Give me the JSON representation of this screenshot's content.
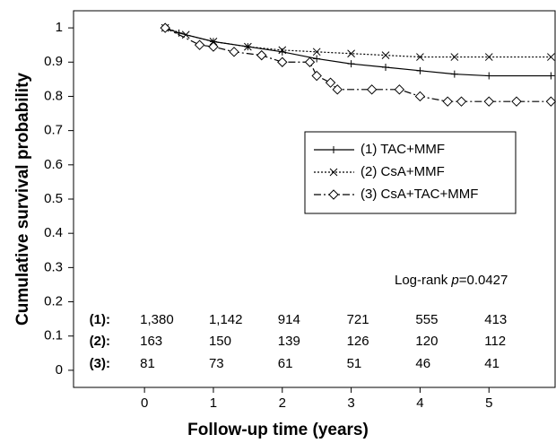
{
  "chart_data": {
    "type": "km",
    "xlabel": "Follow-up time (years)",
    "ylabel": "Cumulative survival probability",
    "xlim": [
      -1.03,
      5.96
    ],
    "ylim": [
      -0.05,
      1.05
    ],
    "xticks": [
      0,
      1,
      2,
      3,
      4,
      5
    ],
    "yticks": [
      0,
      0.1,
      0.2,
      0.3,
      0.4,
      0.5,
      0.6,
      0.7,
      0.8,
      0.9,
      1
    ],
    "series": [
      {
        "name": "(1) TAC+MMF",
        "color": "#000000",
        "dash": "solid",
        "marker": "plus",
        "x": [
          0.3,
          0.5,
          1.0,
          1.5,
          2.0,
          2.5,
          3.0,
          3.5,
          4.0,
          4.5,
          5.0,
          5.9
        ],
        "values": [
          1.0,
          0.985,
          0.96,
          0.945,
          0.93,
          0.91,
          0.895,
          0.885,
          0.875,
          0.865,
          0.86,
          0.86
        ]
      },
      {
        "name": "(2) CsA+MMF",
        "color": "#000000",
        "dash": "dotted",
        "marker": "x",
        "x": [
          0.3,
          0.6,
          1.0,
          1.5,
          2.0,
          2.5,
          3.0,
          3.5,
          4.0,
          4.5,
          5.0,
          5.9
        ],
        "values": [
          1.0,
          0.98,
          0.96,
          0.945,
          0.935,
          0.93,
          0.925,
          0.92,
          0.915,
          0.915,
          0.915,
          0.915
        ]
      },
      {
        "name": "(3) CsA+TAC+MMF",
        "color": "#000000",
        "dash": "dashdot",
        "marker": "diamond",
        "x": [
          0.3,
          0.8,
          1.0,
          1.3,
          1.7,
          2.0,
          2.4,
          2.5,
          2.7,
          2.8,
          3.3,
          3.7,
          4.0,
          4.4,
          4.6,
          5.0,
          5.4,
          5.9
        ],
        "values": [
          1.0,
          0.95,
          0.945,
          0.93,
          0.92,
          0.9,
          0.9,
          0.86,
          0.84,
          0.82,
          0.82,
          0.82,
          0.8,
          0.785,
          0.785,
          0.785,
          0.785,
          0.785
        ]
      }
    ],
    "annotation": {
      "prefix": "Log-rank ",
      "italic": "p",
      "suffix": "=0.0427"
    },
    "risk_table": [
      {
        "label": "(1):",
        "counts": [
          "1,380",
          "1,142",
          "914",
          "721",
          "555",
          "413"
        ]
      },
      {
        "label": "(2):",
        "counts": [
          "163",
          "150",
          "139",
          "126",
          "120",
          "112"
        ]
      },
      {
        "label": "(3):",
        "counts": [
          "81",
          "73",
          "61",
          "51",
          "46",
          "41"
        ]
      }
    ]
  }
}
